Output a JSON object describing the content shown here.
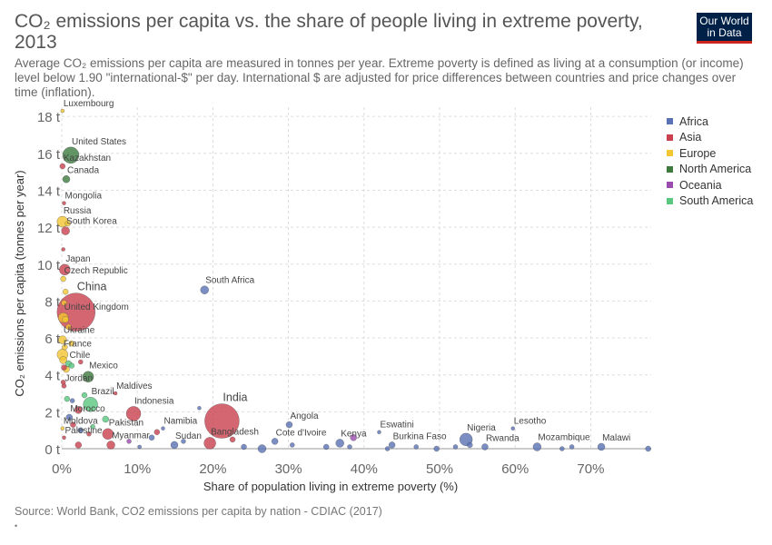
{
  "title": "CO₂ emissions per capita vs. the share of people living in extreme poverty, 2013",
  "subtitle": "Average CO₂ emissions per capita are measured in tonnes per year. Extreme poverty is defined as living at a consumption (or income) level below 1.90 \"international-$\" per day. International $ are adjusted for price differences between countries and price changes over time (inflation).",
  "logo": {
    "line1": "Our World",
    "line2": "in Data"
  },
  "source": "Source: World Bank, CO2 emissions per capita by nation - CDIAC (2017)",
  "footnote": "•",
  "chart_data": {
    "type": "scatter",
    "xlabel": "Share of population living in extreme poverty (%)",
    "ylabel": "CO₂ emissions per capita (tonnes per year)",
    "xlim": [
      0,
      78
    ],
    "ylim": [
      0,
      18.5
    ],
    "x_ticks": [
      0,
      10,
      20,
      30,
      40,
      50,
      60,
      70
    ],
    "x_tick_labels": [
      "0%",
      "10%",
      "20%",
      "30%",
      "40%",
      "50%",
      "60%",
      "70%"
    ],
    "y_ticks": [
      0,
      2,
      4,
      6,
      8,
      10,
      12,
      14,
      16,
      18
    ],
    "y_tick_labels": [
      "0 t",
      "2 t",
      "4 t",
      "6 t",
      "8 t",
      "10 t",
      "12 t",
      "14 t",
      "16 t",
      "18 t"
    ],
    "grid": true,
    "legend_position": "right",
    "legend": [
      {
        "name": "Africa",
        "color": "#5a72b5"
      },
      {
        "name": "Asia",
        "color": "#c9404f"
      },
      {
        "name": "Europe",
        "color": "#f3c632"
      },
      {
        "name": "North America",
        "color": "#3c7a3e"
      },
      {
        "name": "Oceania",
        "color": "#9a4bae"
      },
      {
        "name": "South America",
        "color": "#59c77f"
      }
    ],
    "points": [
      {
        "label": "Luxembourg",
        "x": 0.1,
        "y": 18.3,
        "region": "Europe",
        "r": 2
      },
      {
        "label": "United States",
        "x": 1.2,
        "y": 15.9,
        "region": "North America",
        "r": 9
      },
      {
        "label": "Kazakhstan",
        "x": 0.1,
        "y": 15.3,
        "region": "Asia",
        "r": 3
      },
      {
        "label": "Canada",
        "x": 0.6,
        "y": 14.6,
        "region": "North America",
        "r": 4
      },
      {
        "label": "Mongolia",
        "x": 0.3,
        "y": 13.3,
        "region": "Asia",
        "r": 2
      },
      {
        "label": "Russia",
        "x": 0.1,
        "y": 12.3,
        "region": "Europe",
        "r": 6
      },
      {
        "label": "South Korea",
        "x": 0.5,
        "y": 11.8,
        "region": "Asia",
        "r": 4.5
      },
      {
        "label": "Japan",
        "x": 0.4,
        "y": 9.7,
        "region": "Asia",
        "r": 6
      },
      {
        "label": "Czech Republic",
        "x": 0.2,
        "y": 9.2,
        "region": "Europe",
        "r": 3
      },
      {
        "label": "South Africa",
        "x": 18.9,
        "y": 8.6,
        "region": "Africa",
        "r": 4.5
      },
      {
        "label": "China",
        "x": 1.9,
        "y": 7.4,
        "region": "Asia",
        "r": 21
      },
      {
        "label": "United Kingdom",
        "x": 0.2,
        "y": 7.1,
        "region": "Europe",
        "r": 5.5
      },
      {
        "label": "Ukraine",
        "x": 0.1,
        "y": 5.9,
        "region": "Europe",
        "r": 4.5
      },
      {
        "label": "France",
        "x": 0.1,
        "y": 5.1,
        "region": "Europe",
        "r": 6
      },
      {
        "label": "Chile",
        "x": 0.9,
        "y": 4.6,
        "region": "South America",
        "r": 3.5
      },
      {
        "label": "Mexico",
        "x": 3.5,
        "y": 3.9,
        "region": "North America",
        "r": 6
      },
      {
        "label": "Jordan",
        "x": 0.3,
        "y": 3.4,
        "region": "Asia",
        "r": 2.5
      },
      {
        "label": "Maldives",
        "x": 7.1,
        "y": 3.0,
        "region": "Asia",
        "r": 2
      },
      {
        "label": "Brazil",
        "x": 3.8,
        "y": 2.4,
        "region": "South America",
        "r": 8
      },
      {
        "label": "Indonesia",
        "x": 9.5,
        "y": 1.9,
        "region": "Asia",
        "r": 8
      },
      {
        "label": "India",
        "x": 21.2,
        "y": 1.5,
        "region": "Asia",
        "r": 19
      },
      {
        "label": "Morocco",
        "x": 1.0,
        "y": 1.7,
        "region": "Africa",
        "r": 3.5
      },
      {
        "label": "Moldova",
        "x": 0.1,
        "y": 1.1,
        "region": "Europe",
        "r": 2
      },
      {
        "label": "Pakistan",
        "x": 6.1,
        "y": 0.8,
        "region": "Asia",
        "r": 6
      },
      {
        "label": "Namibia",
        "x": 13.4,
        "y": 1.1,
        "region": "Africa",
        "r": 2
      },
      {
        "label": "Angola",
        "x": 30.1,
        "y": 1.3,
        "region": "Africa",
        "r": 3.5
      },
      {
        "label": "Palestine",
        "x": 0.3,
        "y": 0.6,
        "region": "Asia",
        "r": 2
      },
      {
        "label": "Myanmar",
        "x": 6.5,
        "y": 0.2,
        "region": "Asia",
        "r": 4.5
      },
      {
        "label": "Sudan",
        "x": 14.9,
        "y": 0.2,
        "region": "Africa",
        "r": 4
      },
      {
        "label": "Bangladesh",
        "x": 19.6,
        "y": 0.3,
        "region": "Asia",
        "r": 6.5
      },
      {
        "label": "Cote d'Ivoire",
        "x": 28.2,
        "y": 0.4,
        "region": "Africa",
        "r": 3.5
      },
      {
        "label": "Kenya",
        "x": 36.8,
        "y": 0.3,
        "region": "Africa",
        "r": 4.5
      },
      {
        "label": "Eswatini",
        "x": 42.0,
        "y": 0.9,
        "region": "Africa",
        "r": 2
      },
      {
        "label": "Burkina Faso",
        "x": 43.7,
        "y": 0.2,
        "region": "Africa",
        "r": 3.5
      },
      {
        "label": "Nigeria",
        "x": 53.5,
        "y": 0.5,
        "region": "Africa",
        "r": 7
      },
      {
        "label": "Lesotho",
        "x": 59.7,
        "y": 1.1,
        "region": "Africa",
        "r": 2
      },
      {
        "label": "Rwanda",
        "x": 56.0,
        "y": 0.1,
        "region": "Africa",
        "r": 3.5
      },
      {
        "label": "Mozambique",
        "x": 62.9,
        "y": 0.1,
        "region": "Africa",
        "r": 4.5
      },
      {
        "label": "Malawi",
        "x": 71.4,
        "y": 0.1,
        "region": "Africa",
        "r": 4
      },
      {
        "label": "",
        "x": 26.5,
        "y": 0.0,
        "region": "Africa",
        "r": 4.5
      },
      {
        "label": "",
        "x": 0.8,
        "y": 12.2,
        "region": "Europe",
        "r": 3
      },
      {
        "label": "",
        "x": 0.2,
        "y": 10.8,
        "region": "Asia",
        "r": 2
      },
      {
        "label": "",
        "x": 0.5,
        "y": 8.5,
        "region": "Europe",
        "r": 3
      },
      {
        "label": "",
        "x": 0.3,
        "y": 7.9,
        "region": "Europe",
        "r": 3
      },
      {
        "label": "",
        "x": 0.5,
        "y": 7.0,
        "region": "Europe",
        "r": 3.5
      },
      {
        "label": "",
        "x": 0.9,
        "y": 6.6,
        "region": "Europe",
        "r": 3
      },
      {
        "label": "",
        "x": 1.3,
        "y": 5.7,
        "region": "Europe",
        "r": 3
      },
      {
        "label": "",
        "x": 0.4,
        "y": 5.5,
        "region": "Europe",
        "r": 3
      },
      {
        "label": "",
        "x": 0.2,
        "y": 4.8,
        "region": "Europe",
        "r": 4
      },
      {
        "label": "",
        "x": 0.6,
        "y": 4.3,
        "region": "Europe",
        "r": 3.5
      },
      {
        "label": "",
        "x": 0.3,
        "y": 4.4,
        "region": "Asia",
        "r": 3
      },
      {
        "label": "",
        "x": 1.3,
        "y": 4.5,
        "region": "South America",
        "r": 3
      },
      {
        "label": "",
        "x": 2.5,
        "y": 4.7,
        "region": "Asia",
        "r": 2.5
      },
      {
        "label": "",
        "x": 0.2,
        "y": 3.6,
        "region": "Asia",
        "r": 2.5
      },
      {
        "label": "",
        "x": 0.7,
        "y": 2.7,
        "region": "South America",
        "r": 3
      },
      {
        "label": "",
        "x": 1.4,
        "y": 2.6,
        "region": "Africa",
        "r": 2.5
      },
      {
        "label": "",
        "x": 2.2,
        "y": 2.1,
        "region": "Asia",
        "r": 4
      },
      {
        "label": "",
        "x": 3.0,
        "y": 2.9,
        "region": "South America",
        "r": 3
      },
      {
        "label": "",
        "x": 5.8,
        "y": 1.6,
        "region": "South America",
        "r": 3.5
      },
      {
        "label": "",
        "x": 1.5,
        "y": 1.3,
        "region": "Asia",
        "r": 3
      },
      {
        "label": "",
        "x": 2.5,
        "y": 1.0,
        "region": "Africa",
        "r": 3
      },
      {
        "label": "",
        "x": 4.1,
        "y": 1.2,
        "region": "South America",
        "r": 2.5
      },
      {
        "label": "",
        "x": 2.2,
        "y": 0.2,
        "region": "Asia",
        "r": 3.5
      },
      {
        "label": "",
        "x": 3.6,
        "y": 0.8,
        "region": "Asia",
        "r": 2.5
      },
      {
        "label": "",
        "x": 8.9,
        "y": 0.4,
        "region": "Oceania",
        "r": 2.5
      },
      {
        "label": "",
        "x": 10.3,
        "y": 0.1,
        "region": "Africa",
        "r": 2
      },
      {
        "label": "",
        "x": 11.9,
        "y": 0.6,
        "region": "Africa",
        "r": 3
      },
      {
        "label": "",
        "x": 12.6,
        "y": 0.9,
        "region": "Asia",
        "r": 3
      },
      {
        "label": "",
        "x": 16.1,
        "y": 0.4,
        "region": "Africa",
        "r": 2.5
      },
      {
        "label": "",
        "x": 18.2,
        "y": 2.2,
        "region": "Africa",
        "r": 2
      },
      {
        "label": "",
        "x": 22.6,
        "y": 0.5,
        "region": "Asia",
        "r": 3
      },
      {
        "label": "",
        "x": 24.1,
        "y": 0.1,
        "region": "Africa",
        "r": 3
      },
      {
        "label": "",
        "x": 30.5,
        "y": 0.2,
        "region": "Africa",
        "r": 2.5
      },
      {
        "label": "",
        "x": 35.0,
        "y": 0.1,
        "region": "Africa",
        "r": 3
      },
      {
        "label": "",
        "x": 38.6,
        "y": 0.6,
        "region": "Oceania",
        "r": 3.5
      },
      {
        "label": "",
        "x": 38.1,
        "y": 0.1,
        "region": "Africa",
        "r": 2.5
      },
      {
        "label": "",
        "x": 43.1,
        "y": 0.0,
        "region": "Africa",
        "r": 2.5
      },
      {
        "label": "",
        "x": 46.9,
        "y": 0.1,
        "region": "Africa",
        "r": 2.5
      },
      {
        "label": "",
        "x": 49.6,
        "y": 0.0,
        "region": "Africa",
        "r": 3
      },
      {
        "label": "",
        "x": 52.1,
        "y": 0.1,
        "region": "Africa",
        "r": 2.5
      },
      {
        "label": "",
        "x": 54.0,
        "y": 0.2,
        "region": "Africa",
        "r": 3
      },
      {
        "label": "",
        "x": 66.2,
        "y": 0.0,
        "region": "Africa",
        "r": 2.5
      },
      {
        "label": "",
        "x": 67.5,
        "y": 0.1,
        "region": "Africa",
        "r": 2.5
      },
      {
        "label": "",
        "x": 77.6,
        "y": 0.0,
        "region": "Africa",
        "r": 3
      }
    ]
  }
}
